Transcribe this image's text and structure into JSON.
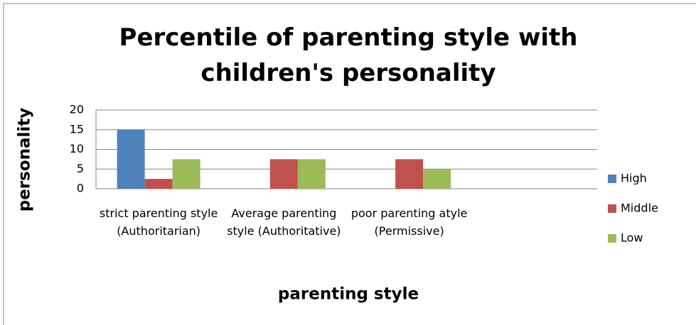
{
  "chart_data": {
    "type": "bar",
    "title": "Percentile of parenting style with children's personality",
    "x_label": "parenting style",
    "y_label": "personality",
    "categories": [
      "strict parenting style (Authoritarian)",
      "Average parenting style (Authoritative)",
      "poor parenting atyle (Permissive)",
      null
    ],
    "series": [
      {
        "name": "High",
        "color": "#4f81bd",
        "values": [
          15,
          0,
          0,
          null
        ]
      },
      {
        "name": "Middle",
        "color": "#c0504d",
        "values": [
          2.5,
          7.5,
          7.5,
          null
        ]
      },
      {
        "name": "Low",
        "color": "#9bbb59",
        "values": [
          7.5,
          7.5,
          5,
          null
        ]
      }
    ],
    "ylim": [
      0,
      20
    ],
    "yticks": [
      0,
      5,
      10,
      15,
      20
    ],
    "grid": true,
    "legend": "right"
  }
}
